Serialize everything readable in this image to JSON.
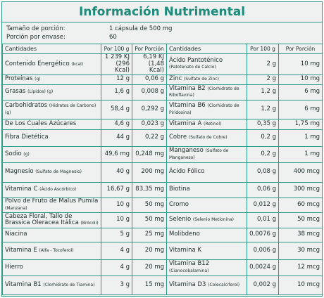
{
  "title": "Información Nutrimental",
  "serving": [
    {
      "label": "Tamaño de porción:",
      "value": "1 cápsula de 500 mg"
    },
    {
      "label": "Porción por envase:",
      "value": "60"
    }
  ],
  "table": {
    "headers": [
      "Cantidades",
      "Por 100 g",
      "Por Porción",
      "Cantidades",
      "Por 100 g",
      "Por Porción"
    ],
    "rows": [
      {
        "left": {
          "name": "Contenido Energético",
          "note": "(kcal)",
          "per100": "1 239 KJ (296 Kcal)",
          "perServing": "6,19 KJ (1,48 Kcal)"
        },
        "right": {
          "name": "Ácido Pantoténico",
          "note": "(Patotenato de Calcio)",
          "per100": "2 g",
          "perServing": "10 mg"
        }
      },
      {
        "left": {
          "name": "Proteínas",
          "note": "(g)",
          "per100": "12 g",
          "perServing": "0,06 g"
        },
        "right": {
          "name": "Zinc",
          "note": "(Sulfato de Zinc)",
          "per100": "2 g",
          "perServing": "10 mg"
        }
      },
      {
        "left": {
          "name": "Grasas",
          "note": "(Lípidos) (g)",
          "per100": "1,6 g",
          "perServing": "0,008 g"
        },
        "right": {
          "name": "Vitamina B2",
          "note": "(Clorhidrato de Riboflavina)",
          "per100": "1,2 g",
          "perServing": "6 mg"
        }
      },
      {
        "left": {
          "name": "Carbohidratos",
          "note": "(Hidratos de Carbono) (g)",
          "per100": "58,4 g",
          "perServing": "0,292 g"
        },
        "right": {
          "name": "Vitamina B6",
          "note": "(Clorhidrato de Piridoxina)",
          "per100": "1,2 g",
          "perServing": "6 mg"
        }
      },
      {
        "left": {
          "name": "De Los Cuales Azúcares",
          "per100": "4,6 g",
          "perServing": "0,023 g"
        },
        "right": {
          "name": "Vitamina A",
          "note": "(Retinol)",
          "per100": "0,35 g",
          "perServing": "1,75 mg"
        }
      },
      {
        "left": {
          "name": "Fibra Dietética",
          "per100": "44 g",
          "perServing": "0,22 g"
        },
        "right": {
          "name": "Cobre",
          "note": "(Sulfato de Cobre)",
          "per100": "0,2 g",
          "perServing": "1 mg"
        }
      },
      {
        "left": {
          "name": "Sodio",
          "note": "(g)",
          "per100": "49,6 mg",
          "perServing": "0,248 mg"
        },
        "right": {
          "name": "Manganeso",
          "note": "(Sulfato de Manganeso)",
          "per100": "0,2 g",
          "perServing": "1 mg"
        }
      },
      {
        "left": {
          "name": "Magnesio",
          "note": "(Sulfato de Magnesio)",
          "per100": "40 g",
          "perServing": "200 mg"
        },
        "right": {
          "name": "Ácido Fólico",
          "per100": "0,08 g",
          "perServing": "400 mcg"
        }
      },
      {
        "left": {
          "name": "Vitamina C",
          "note": "(Ácido Ascórbico)",
          "per100": "16,67 g",
          "perServing": "83,35 mg"
        },
        "right": {
          "name": "Biotina",
          "per100": "0,06 g",
          "perServing": "300 mcg"
        }
      },
      {
        "left": {
          "name": "Polvo de Fruto de Malus Pumila",
          "note": "(Manzana)",
          "per100": "10 g",
          "perServing": "50 mg"
        },
        "right": {
          "name": "Cromo",
          "per100": "0,012 g",
          "perServing": "60 mcg"
        }
      },
      {
        "left": {
          "name": "Cabeza Floral, Tallo de Brassica Oleracea Itálica",
          "note": "(Brócoli)",
          "per100": "10 g",
          "perServing": "50 mg"
        },
        "right": {
          "name": "Selenio",
          "note": "(Selenio Metionina)",
          "per100": "0,01 g",
          "perServing": "50 mcg"
        }
      },
      {
        "left": {
          "name": "Niacina",
          "per100": "5 g",
          "perServing": "25 mg"
        },
        "right": {
          "name": "Molibdeno",
          "per100": "0,0076 g",
          "perServing": "38 mcg"
        }
      },
      {
        "left": {
          "name": "Vitamina E",
          "note": "(Alfa - Tocoferol)",
          "per100": "4 g",
          "perServing": "20 mg"
        },
        "right": {
          "name": "Vitamina K",
          "per100": "0,006 g",
          "perServing": "30 mcg"
        }
      },
      {
        "left": {
          "name": "Hierro",
          "per100": "4 g",
          "perServing": "20 mg"
        },
        "right": {
          "name": "Vitamina B12",
          "note": "(Cianocobalamina)",
          "per100": "0,0024 g",
          "perServing": "12 mcg"
        }
      },
      {
        "left": {
          "name": "Vitamina B1",
          "note": "(Clorhidrato de Tiamina)",
          "per100": "3 g",
          "perServing": "15 mg"
        },
        "right": {
          "name": "Vitamina D3",
          "note": "(Colecalciferol)",
          "per100": "0,002 g",
          "perServing": "10 mcg"
        }
      }
    ]
  }
}
